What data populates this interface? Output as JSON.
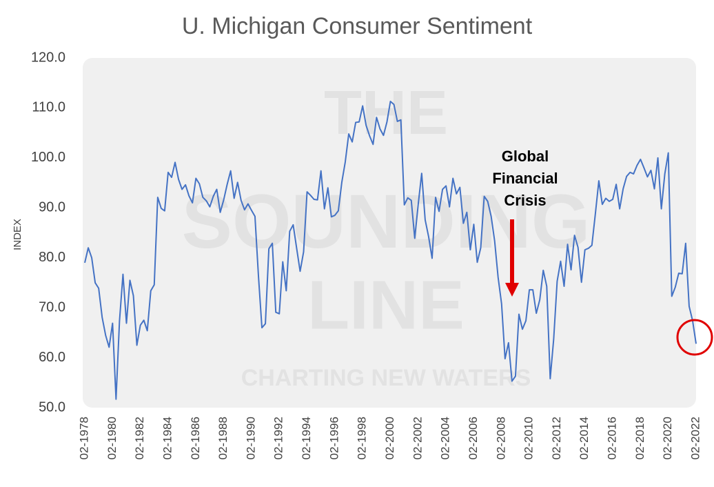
{
  "chart_data": {
    "type": "line",
    "title": "U. Michigan Consumer Sentiment",
    "y_label": "INDEX",
    "watermark": [
      "THE",
      "SOUNDING",
      "LINE",
      "CHARTING NEW WATERS"
    ],
    "annotation": [
      "Global",
      "Financial",
      "Crisis"
    ],
    "x": [
      "02-1978",
      "05-1978",
      "08-1978",
      "11-1978",
      "02-1979",
      "05-1979",
      "08-1979",
      "11-1979",
      "02-1980",
      "05-1980",
      "08-1980",
      "11-1980",
      "02-1981",
      "05-1981",
      "08-1981",
      "11-1981",
      "02-1982",
      "05-1982",
      "08-1982",
      "11-1982",
      "02-1983",
      "05-1983",
      "08-1983",
      "11-1983",
      "02-1984",
      "05-1984",
      "08-1984",
      "11-1984",
      "02-1985",
      "05-1985",
      "08-1985",
      "11-1985",
      "02-1986",
      "05-1986",
      "08-1986",
      "11-1986",
      "02-1987",
      "05-1987",
      "08-1987",
      "11-1987",
      "02-1988",
      "05-1988",
      "08-1988",
      "11-1988",
      "02-1989",
      "05-1989",
      "08-1989",
      "11-1989",
      "02-1990",
      "05-1990",
      "08-1990",
      "11-1990",
      "02-1991",
      "05-1991",
      "08-1991",
      "11-1991",
      "02-1992",
      "05-1992",
      "08-1992",
      "11-1992",
      "02-1993",
      "05-1993",
      "08-1993",
      "11-1993",
      "02-1994",
      "05-1994",
      "08-1994",
      "11-1994",
      "02-1995",
      "05-1995",
      "08-1995",
      "11-1995",
      "02-1996",
      "05-1996",
      "08-1996",
      "11-1996",
      "02-1997",
      "05-1997",
      "08-1997",
      "11-1997",
      "02-1998",
      "05-1998",
      "08-1998",
      "11-1998",
      "02-1999",
      "05-1999",
      "08-1999",
      "11-1999",
      "02-2000",
      "05-2000",
      "08-2000",
      "11-2000",
      "02-2001",
      "05-2001",
      "08-2001",
      "11-2001",
      "02-2002",
      "05-2002",
      "08-2002",
      "11-2002",
      "02-2003",
      "05-2003",
      "08-2003",
      "11-2003",
      "02-2004",
      "05-2004",
      "08-2004",
      "11-2004",
      "02-2005",
      "05-2005",
      "08-2005",
      "11-2005",
      "02-2006",
      "05-2006",
      "08-2006",
      "11-2006",
      "02-2007",
      "05-2007",
      "08-2007",
      "11-2007",
      "02-2008",
      "05-2008",
      "08-2008",
      "11-2008",
      "02-2009",
      "05-2009",
      "08-2009",
      "11-2009",
      "02-2010",
      "05-2010",
      "08-2010",
      "11-2010",
      "02-2011",
      "05-2011",
      "08-2011",
      "11-2011",
      "02-2012",
      "05-2012",
      "08-2012",
      "11-2012",
      "02-2013",
      "05-2013",
      "08-2013",
      "11-2013",
      "02-2014",
      "05-2014",
      "08-2014",
      "11-2014",
      "02-2015",
      "05-2015",
      "08-2015",
      "11-2015",
      "02-2016",
      "05-2016",
      "08-2016",
      "11-2016",
      "02-2017",
      "05-2017",
      "08-2017",
      "11-2017",
      "02-2018",
      "05-2018",
      "08-2018",
      "11-2018",
      "02-2019",
      "05-2019",
      "08-2019",
      "11-2019",
      "02-2020",
      "05-2020",
      "08-2020",
      "11-2020",
      "02-2021",
      "05-2021",
      "08-2021",
      "11-2021",
      "02-2022"
    ],
    "series": [
      {
        "name": "Consumer Sentiment",
        "color": "#4472c4",
        "values": [
          79,
          82,
          80,
          75,
          73.9,
          68.1,
          64.5,
          62.1,
          66.9,
          51.7,
          67.4,
          76.7,
          66.9,
          75.5,
          72.4,
          62.5,
          66.5,
          67.5,
          65.4,
          73.4,
          74.6,
          92.1,
          89.9,
          89.4,
          97.1,
          96.1,
          99.1,
          95.7,
          93.7,
          94.6,
          92.4,
          91.0,
          95.9,
          94.8,
          92.1,
          91.4,
          90.2,
          92.3,
          93.7,
          89.1,
          91.6,
          94.7,
          97.4,
          91.9,
          95.1,
          91.5,
          89.6,
          90.8,
          89.5,
          88.3,
          76.4,
          66.0,
          66.8,
          81.8,
          82.9,
          69.1,
          68.8,
          79.2,
          73.4,
          85.3,
          86.6,
          81.9,
          77.3,
          81.2,
          93.2,
          92.5,
          91.7,
          91.6,
          97.4,
          89.8,
          94.0,
          88.2,
          88.5,
          89.4,
          95.1,
          99.2,
          104.8,
          103.2,
          107.1,
          107.2,
          110.4,
          106.5,
          104.4,
          102.7,
          108.1,
          105.8,
          104.5,
          107.2,
          111.3,
          110.7,
          107.3,
          107.6,
          90.6,
          92.0,
          91.5,
          83.9,
          90.7,
          96.9,
          87.6,
          84.2,
          79.9,
          92.1,
          89.3,
          93.7,
          94.4,
          90.2,
          95.9,
          92.8,
          94.1,
          86.9,
          89.1,
          81.6,
          86.7,
          79.1,
          82.0,
          92.3,
          91.3,
          88.3,
          83.4,
          76.1,
          70.8,
          59.8,
          63.0,
          55.3,
          56.3,
          68.7,
          65.7,
          67.4,
          73.6,
          73.6,
          68.9,
          71.6,
          77.5,
          74.3,
          55.8,
          63.7,
          75.3,
          79.3,
          74.3,
          82.7,
          77.6,
          84.5,
          82.1,
          75.1,
          81.6,
          81.9,
          82.5,
          88.8,
          95.4,
          90.7,
          91.9,
          91.3,
          91.7,
          94.7,
          89.8,
          93.8,
          96.3,
          97.1,
          96.8,
          98.5,
          99.7,
          98.0,
          96.2,
          97.5,
          93.8,
          100.0,
          89.8,
          96.8,
          101.0,
          72.3,
          74.1,
          76.9,
          76.8,
          82.9,
          70.3,
          67.4,
          62.8
        ]
      }
    ],
    "xticks": [
      "02-1978",
      "02-1980",
      "02-1982",
      "02-1984",
      "02-1986",
      "02-1988",
      "02-1990",
      "02-1992",
      "02-1994",
      "02-1996",
      "02-1998",
      "02-2000",
      "02-2002",
      "02-2004",
      "02-2006",
      "02-2008",
      "02-2010",
      "02-2012",
      "02-2014",
      "02-2016",
      "02-2018",
      "02-2020",
      "02-2022"
    ],
    "ylim": [
      50,
      120
    ],
    "yticks": [
      {
        "value": 50,
        "label": "50.0"
      },
      {
        "value": 60,
        "label": "60.0"
      },
      {
        "value": 70,
        "label": "70.0"
      },
      {
        "value": 80,
        "label": "80.0"
      },
      {
        "value": 90,
        "label": "90.0"
      },
      {
        "value": 100,
        "label": "100.0"
      },
      {
        "value": 110,
        "label": "110.0"
      },
      {
        "value": 120,
        "label": "120.0"
      }
    ],
    "grid": false
  }
}
